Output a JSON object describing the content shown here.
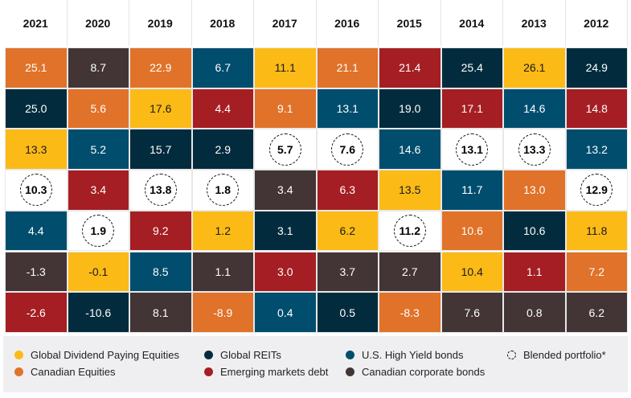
{
  "chart_data": {
    "type": "table",
    "title": "",
    "years": [
      "2021",
      "2020",
      "2019",
      "2018",
      "2017",
      "2016",
      "2015",
      "2014",
      "2013",
      "2012"
    ],
    "series": [
      {
        "key": "Y",
        "name": "Global Dividend Paying Equities",
        "color": "#FBBA16",
        "text_color": "#1a1a1a"
      },
      {
        "key": "R",
        "name": "Global REITs",
        "color": "#022C3D",
        "text_color": "#ffffff"
      },
      {
        "key": "B",
        "name": "U.S. High Yield bonds",
        "color": "#004D6E",
        "text_color": "#ffffff"
      },
      {
        "key": "P",
        "name": "Blended portfolio*",
        "color": "#ffffff",
        "text_color": "#000000",
        "style": "dashed-circle"
      },
      {
        "key": "O",
        "name": "Canadian Equities",
        "color": "#E0722A",
        "text_color": "#ffffff"
      },
      {
        "key": "M",
        "name": "Emerging markets debt",
        "color": "#A51E23",
        "text_color": "#ffffff"
      },
      {
        "key": "C",
        "name": "Canadian corporate bonds",
        "color": "#433535",
        "text_color": "#ffffff"
      }
    ],
    "columns": [
      [
        [
          "O",
          "25.1"
        ],
        [
          "R",
          "25.0"
        ],
        [
          "Y",
          "13.3"
        ],
        [
          "P",
          "10.3"
        ],
        [
          "B",
          "4.4"
        ],
        [
          "C",
          "-1.3"
        ],
        [
          "M",
          "-2.6"
        ]
      ],
      [
        [
          "C",
          "8.7"
        ],
        [
          "O",
          "5.6"
        ],
        [
          "B",
          "5.2"
        ],
        [
          "M",
          "3.4"
        ],
        [
          "P",
          "1.9"
        ],
        [
          "Y",
          "-0.1"
        ],
        [
          "R",
          "-10.6"
        ]
      ],
      [
        [
          "O",
          "22.9"
        ],
        [
          "Y",
          "17.6"
        ],
        [
          "R",
          "15.7"
        ],
        [
          "P",
          "13.8"
        ],
        [
          "M",
          "9.2"
        ],
        [
          "B",
          "8.5"
        ],
        [
          "C",
          "8.1"
        ]
      ],
      [
        [
          "B",
          "6.7"
        ],
        [
          "M",
          "4.4"
        ],
        [
          "R",
          "2.9"
        ],
        [
          "P",
          "1.8"
        ],
        [
          "Y",
          "1.2"
        ],
        [
          "C",
          "1.1"
        ],
        [
          "O",
          "-8.9"
        ]
      ],
      [
        [
          "Y",
          "11.1"
        ],
        [
          "O",
          "9.1"
        ],
        [
          "P",
          "5.7"
        ],
        [
          "C",
          "3.4"
        ],
        [
          "R",
          "3.1"
        ],
        [
          "M",
          "3.0"
        ],
        [
          "B",
          "0.4"
        ]
      ],
      [
        [
          "O",
          "21.1"
        ],
        [
          "B",
          "13.1"
        ],
        [
          "P",
          "7.6"
        ],
        [
          "M",
          "6.3"
        ],
        [
          "Y",
          "6.2"
        ],
        [
          "C",
          "3.7"
        ],
        [
          "R",
          "0.5"
        ]
      ],
      [
        [
          "M",
          "21.4"
        ],
        [
          "R",
          "19.0"
        ],
        [
          "B",
          "14.6"
        ],
        [
          "Y",
          "13.5"
        ],
        [
          "P",
          "11.2"
        ],
        [
          "C",
          "2.7"
        ],
        [
          "O",
          "-8.3"
        ]
      ],
      [
        [
          "R",
          "25.4"
        ],
        [
          "M",
          "17.1"
        ],
        [
          "P",
          "13.1"
        ],
        [
          "B",
          "11.7"
        ],
        [
          "O",
          "10.6"
        ],
        [
          "Y",
          "10.4"
        ],
        [
          "C",
          "7.6"
        ]
      ],
      [
        [
          "Y",
          "26.1"
        ],
        [
          "B",
          "14.6"
        ],
        [
          "P",
          "13.3"
        ],
        [
          "O",
          "13.0"
        ],
        [
          "R",
          "10.6"
        ],
        [
          "M",
          "1.1"
        ],
        [
          "C",
          "0.8"
        ]
      ],
      [
        [
          "R",
          "24.9"
        ],
        [
          "M",
          "14.8"
        ],
        [
          "B",
          "13.2"
        ],
        [
          "P",
          "12.9"
        ],
        [
          "Y",
          "11.8"
        ],
        [
          "O",
          "7.2"
        ],
        [
          "C",
          "6.2"
        ]
      ]
    ],
    "legend_placement": "bottom"
  }
}
